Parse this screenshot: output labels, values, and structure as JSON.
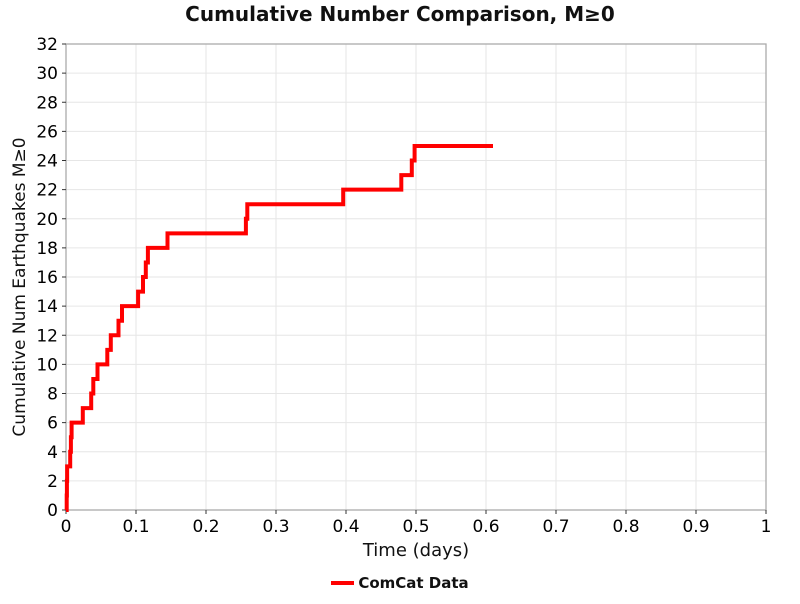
{
  "title": "Cumulative Number Comparison, M≥0",
  "colors": {
    "line": "#ff0000",
    "grid": "#e6e6e6",
    "spine": "#ababab",
    "tick": "#333333",
    "text": "#000000",
    "background": "#ffffff"
  },
  "legend": {
    "position": "bottom-center",
    "entries": [
      {
        "label": "ComCat Data",
        "color": "#ff0000"
      }
    ]
  },
  "chart_data": {
    "type": "line",
    "subtype": "step-post",
    "title": "Cumulative Number Comparison, M≥0",
    "xlabel": "Time (days)",
    "ylabel": "Cumulative Num Earthquakes M≥0",
    "xlim": [
      0,
      1
    ],
    "ylim": [
      0,
      32
    ],
    "grid": true,
    "xticks": [
      0,
      0.1,
      0.2,
      0.3,
      0.4,
      0.5,
      0.6,
      0.7,
      0.8,
      0.9,
      1
    ],
    "xtick_labels": [
      "0",
      "0.1",
      "0.2",
      "0.3",
      "0.4",
      "0.5",
      "0.6",
      "0.7",
      "0.8",
      "0.9",
      "1"
    ],
    "yticks": [
      0,
      2,
      4,
      6,
      8,
      10,
      12,
      14,
      16,
      18,
      20,
      22,
      24,
      26,
      28,
      30,
      32
    ],
    "ytick_labels": [
      "0",
      "2",
      "4",
      "6",
      "8",
      "10",
      "12",
      "14",
      "16",
      "18",
      "20",
      "22",
      "24",
      "26",
      "28",
      "30",
      "32"
    ],
    "legend_entries": [
      "ComCat Data"
    ],
    "series": [
      {
        "name": "ComCat Data",
        "color": "#ff0000",
        "line_width": 4,
        "x": [
          0,
          0.001,
          0.0013,
          0.0016,
          0.006,
          0.007,
          0.008,
          0.024,
          0.036,
          0.039,
          0.045,
          0.059,
          0.064,
          0.075,
          0.08,
          0.103,
          0.11,
          0.114,
          0.117,
          0.145,
          0.257,
          0.259,
          0.396,
          0.479,
          0.494,
          0.498,
          0.61
        ],
        "y": [
          0,
          1,
          2,
          3,
          4,
          5,
          6,
          7,
          8,
          9,
          10,
          11,
          12,
          13,
          14,
          15,
          16,
          17,
          18,
          19,
          20,
          21,
          22,
          23,
          24,
          25,
          25
        ]
      }
    ]
  }
}
